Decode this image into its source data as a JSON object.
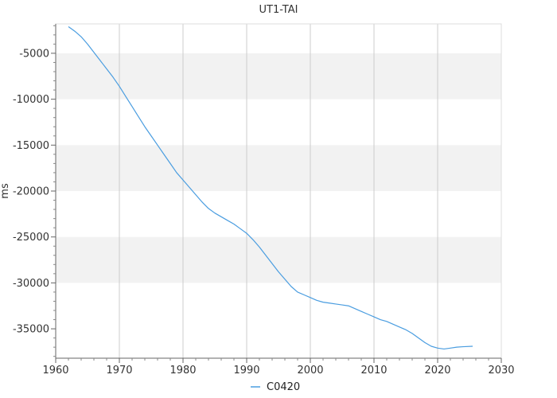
{
  "chart_data": {
    "type": "line",
    "title": "UT1-TAI",
    "xlabel": "",
    "ylabel": "ms",
    "xlim": [
      1960,
      2030
    ],
    "ylim": [
      -38200,
      -1800
    ],
    "x_ticks": [
      1960,
      1970,
      1980,
      1990,
      2000,
      2010,
      2020,
      2030
    ],
    "y_ticks": [
      -5000,
      -10000,
      -15000,
      -20000,
      -25000,
      -30000,
      -35000
    ],
    "grid": "vertical lines with alternating horizontal bands",
    "legend_position": "bottom-center",
    "colors": {
      "series": "#4a9de0",
      "band": "#f2f2f2",
      "grid": "#cccccc"
    },
    "series": [
      {
        "name": "C0420",
        "x": [
          1962.0,
          1963.0,
          1964.0,
          1965.0,
          1966.0,
          1967.0,
          1968.0,
          1969.0,
          1970.0,
          1971.0,
          1972.0,
          1973.0,
          1974.0,
          1975.0,
          1976.0,
          1977.0,
          1978.0,
          1979.0,
          1980.0,
          1981.0,
          1982.0,
          1983.0,
          1984.0,
          1985.0,
          1986.0,
          1987.0,
          1988.0,
          1989.0,
          1990.0,
          1991.0,
          1992.0,
          1993.0,
          1994.0,
          1995.0,
          1996.0,
          1997.0,
          1998.0,
          1999.0,
          2000.0,
          2001.0,
          2002.0,
          2003.0,
          2004.0,
          2005.0,
          2006.0,
          2007.0,
          2008.0,
          2009.0,
          2010.0,
          2011.0,
          2012.0,
          2013.0,
          2014.0,
          2015.0,
          2016.0,
          2017.0,
          2018.0,
          2019.0,
          2020.0,
          2021.0,
          2022.0,
          2023.0,
          2024.0,
          2025.5
        ],
        "y": [
          -2100,
          -2600,
          -3200,
          -4000,
          -4900,
          -5800,
          -6700,
          -7600,
          -8600,
          -9700,
          -10800,
          -11900,
          -13000,
          -14000,
          -15000,
          -16000,
          -17000,
          -18000,
          -18800,
          -19600,
          -20400,
          -21200,
          -21900,
          -22400,
          -22800,
          -23200,
          -23600,
          -24100,
          -24600,
          -25300,
          -26100,
          -27000,
          -27900,
          -28800,
          -29600,
          -30400,
          -31000,
          -31300,
          -31600,
          -31900,
          -32100,
          -32200,
          -32300,
          -32400,
          -32500,
          -32800,
          -33100,
          -33400,
          -33700,
          -34000,
          -34200,
          -34500,
          -34800,
          -35100,
          -35500,
          -36000,
          -36500,
          -36900,
          -37100,
          -37200,
          -37100,
          -37000,
          -36950,
          -36900
        ]
      }
    ]
  }
}
